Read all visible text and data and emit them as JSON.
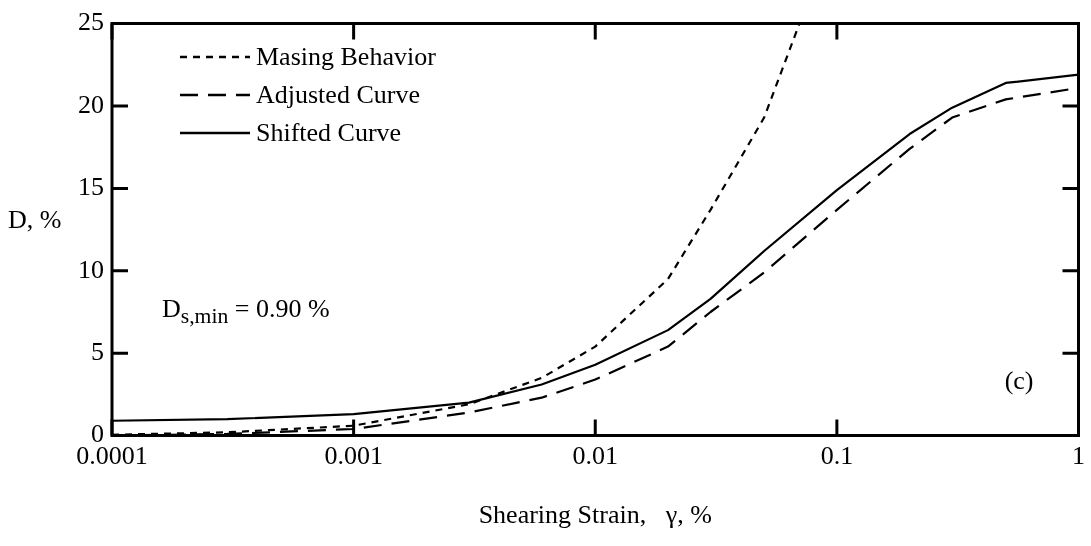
{
  "chart_data": {
    "type": "line",
    "xlabel": "Shearing Strain,   γ, %",
    "ylabel": "D, %",
    "log": "x",
    "grid": false,
    "legend": "top left",
    "marker": "none",
    "xlim": [
      0.0001,
      1
    ],
    "xticks": [
      0.0001,
      0.001,
      0.01,
      0.1,
      1
    ],
    "ylim": [
      0,
      25
    ],
    "yticks": [
      0,
      5,
      10,
      15,
      20,
      25
    ],
    "annotations": [
      "D$_{s,min}$ = 0.90 %",
      "(c)"
    ],
    "series": [
      {
        "name": "Masing Behavior",
        "color": "#000000",
        "line_style": "dotted",
        "x": [
          0.0001,
          0.0003,
          0.001,
          0.003,
          0.006,
          0.01,
          0.02,
          0.03,
          0.05,
          0.07
        ],
        "values": [
          0.05,
          0.2,
          0.6,
          1.9,
          3.5,
          5.4,
          9.5,
          13.7,
          19.3,
          25
        ]
      },
      {
        "name": "Adjusted Curve",
        "color": "#000000",
        "line_style": "dashed",
        "x": [
          0.0001,
          0.0003,
          0.001,
          0.003,
          0.006,
          0.01,
          0.02,
          0.03,
          0.05,
          0.1,
          0.2,
          0.3,
          0.5,
          1
        ],
        "values": [
          0,
          0.1,
          0.4,
          1.4,
          2.3,
          3.4,
          5.4,
          7.5,
          9.9,
          13.7,
          17.4,
          19.3,
          20.4,
          21.1
        ]
      },
      {
        "name": "Shifted Curve",
        "color": "#000000",
        "line_style": "solid",
        "x": [
          0.0001,
          0.0003,
          0.001,
          0.003,
          0.006,
          0.01,
          0.02,
          0.03,
          0.05,
          0.1,
          0.2,
          0.3,
          0.5,
          1
        ],
        "values": [
          0.9,
          1.0,
          1.3,
          2.0,
          3.1,
          4.3,
          6.4,
          8.3,
          11.2,
          14.9,
          18.3,
          19.9,
          21.4,
          21.9
        ]
      }
    ]
  }
}
